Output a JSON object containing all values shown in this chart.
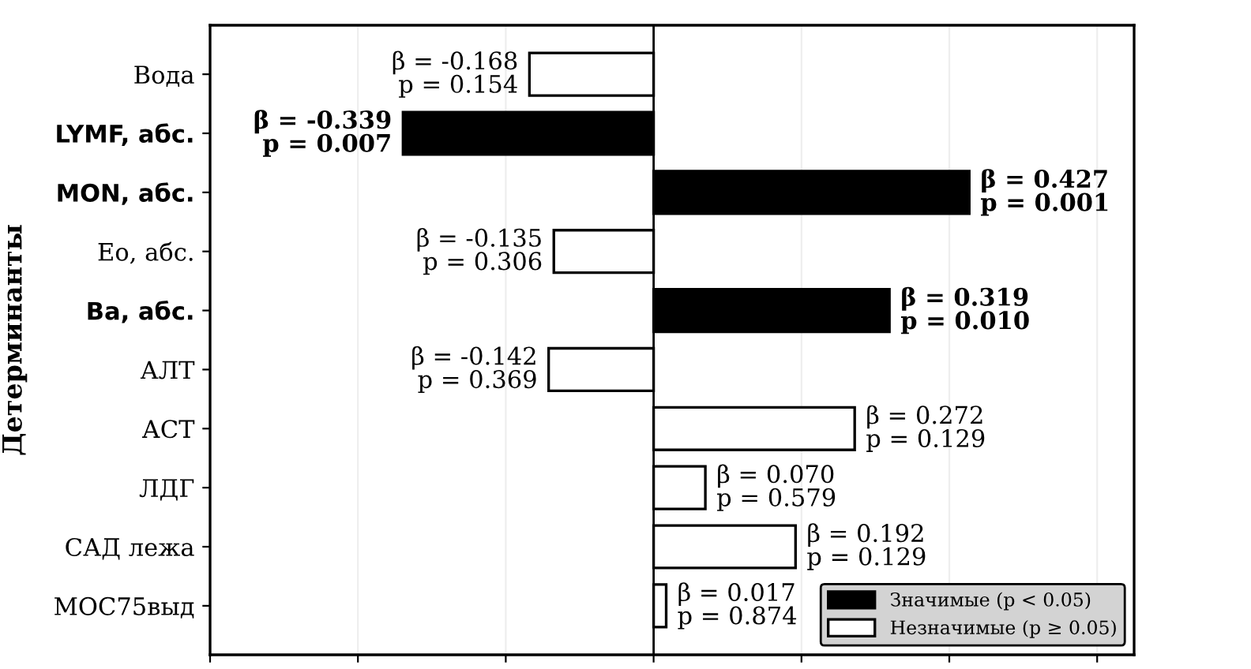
{
  "chart_data": {
    "type": "bar",
    "orientation": "horizontal",
    "ylabel": "Детерминанты",
    "categories": [
      "Вода",
      "LYMF, абс.",
      "MON, абс.",
      "Ео, абс.",
      "Ba, абс.",
      "АЛТ",
      "АСТ",
      "ЛДГ",
      "САД лежа",
      "МОС75выд"
    ],
    "series": [
      {
        "name": "Значимые (p < 0.05)",
        "color": "#000000",
        "values": [
          null,
          -0.339,
          0.427,
          null,
          0.319,
          null,
          null,
          null,
          null,
          null
        ],
        "value_labels": [
          null,
          "β = -0.339\np = 0.007",
          "β = 0.427\np = 0.001",
          null,
          "β = 0.319\np = 0.010",
          null,
          null,
          null,
          null,
          null
        ]
      },
      {
        "name": "Незначимые (p ≥ 0.05)",
        "color": "#ffffff",
        "values": [
          -0.168,
          null,
          null,
          -0.135,
          null,
          -0.142,
          0.272,
          0.07,
          0.192,
          0.017
        ],
        "value_labels": [
          "β = -0.168\np = 0.154",
          null,
          null,
          "β = -0.135\np = 0.306",
          null,
          "β = -0.142\np = 0.369",
          "β = 0.272\np = 0.129",
          "β = 0.070\np = 0.579",
          "β = 0.192\np = 0.129",
          "β = 0.017\np = 0.874"
        ]
      }
    ],
    "xlim": [
      -0.6,
      0.65
    ],
    "xticks": [
      {
        "value": -0.6,
        "label": null
      },
      {
        "value": -0.4,
        "label": null
      },
      {
        "value": -0.2,
        "label": null
      },
      {
        "value": 0,
        "label": null
      },
      {
        "value": 0.2,
        "label": null
      },
      {
        "value": 0.4,
        "label": null
      },
      {
        "value": 0.6,
        "label": null
      }
    ],
    "ref_lines": [
      {
        "axis": "x",
        "value": 0,
        "color": "#000000"
      }
    ],
    "grid": "x",
    "legend": "bottom right",
    "tick_labels": "y"
  }
}
